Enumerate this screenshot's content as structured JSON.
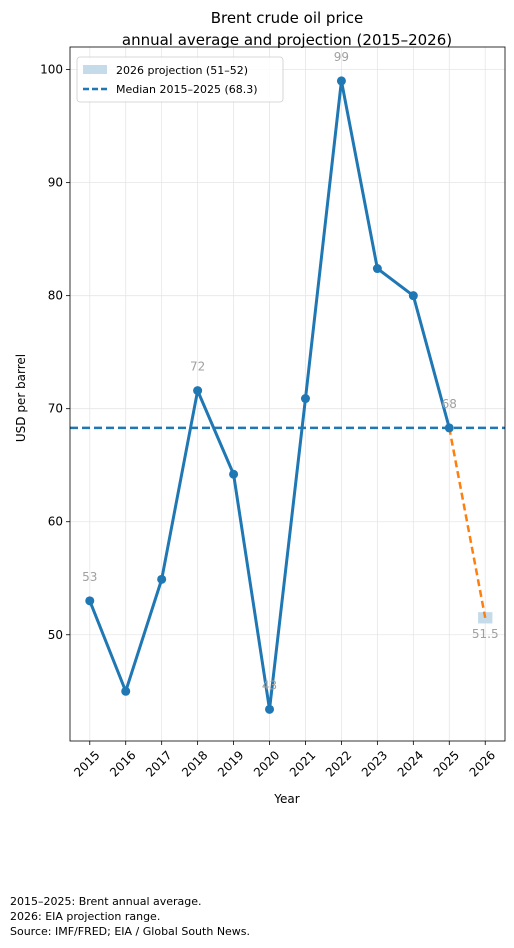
{
  "chart_data": {
    "type": "line",
    "title": "Brent crude oil price",
    "subtitle": "annual average and projection (2015–2026)",
    "xlabel": "Year",
    "ylabel": "USD per barrel",
    "x": [
      2015,
      2016,
      2017,
      2018,
      2019,
      2020,
      2021,
      2022,
      2023,
      2024,
      2025
    ],
    "values": [
      53.0,
      45.0,
      54.9,
      71.6,
      64.2,
      43.4,
      70.9,
      99.0,
      82.4,
      80.0,
      68.3
    ],
    "x_ticks": [
      "2015",
      "2016",
      "2017",
      "2018",
      "2019",
      "2020",
      "2021",
      "2022",
      "2023",
      "2024",
      "2025",
      "2026"
    ],
    "y_ticks": [
      "50",
      "60",
      "70",
      "80",
      "90",
      "100"
    ],
    "y_tick_values": [
      50,
      60,
      70,
      80,
      90,
      100
    ],
    "xlim": [
      2014.45,
      2026.55
    ],
    "ylim": [
      40.6,
      102.0
    ],
    "grid": true,
    "legend_position": "top-left",
    "projection": {
      "x": [
        2025,
        2026
      ],
      "values": [
        68.3,
        51.5
      ],
      "range_low": 51,
      "range_high": 52,
      "legend_label": "2026 projection (51–52)",
      "range_color": "#c6dbe9",
      "color": "#ff7f0e"
    },
    "median": {
      "value": 68.3,
      "legend_label": "Median 2015–2025 (68.3)",
      "color": "#1f77b4"
    },
    "annotations": [
      {
        "x": 2015,
        "value": 53,
        "text": "53"
      },
      {
        "x": 2018,
        "value": 71.6,
        "text": "72"
      },
      {
        "x": 2020,
        "value": 43.4,
        "text": "43"
      },
      {
        "x": 2022,
        "value": 99.0,
        "text": "99"
      },
      {
        "x": 2025,
        "value": 68.3,
        "text": "68"
      },
      {
        "x": 2026,
        "value": 51.5,
        "text": "51.5"
      }
    ],
    "colors": {
      "series": "#1f77b4",
      "annotation": "#a0a0a0",
      "grid": "#e6e6e6"
    }
  },
  "footnotes": [
    "2015–2025: Brent annual average.",
    "2026: EIA projection range.",
    "Source: IMF/FRED; EIA / Global South News."
  ]
}
